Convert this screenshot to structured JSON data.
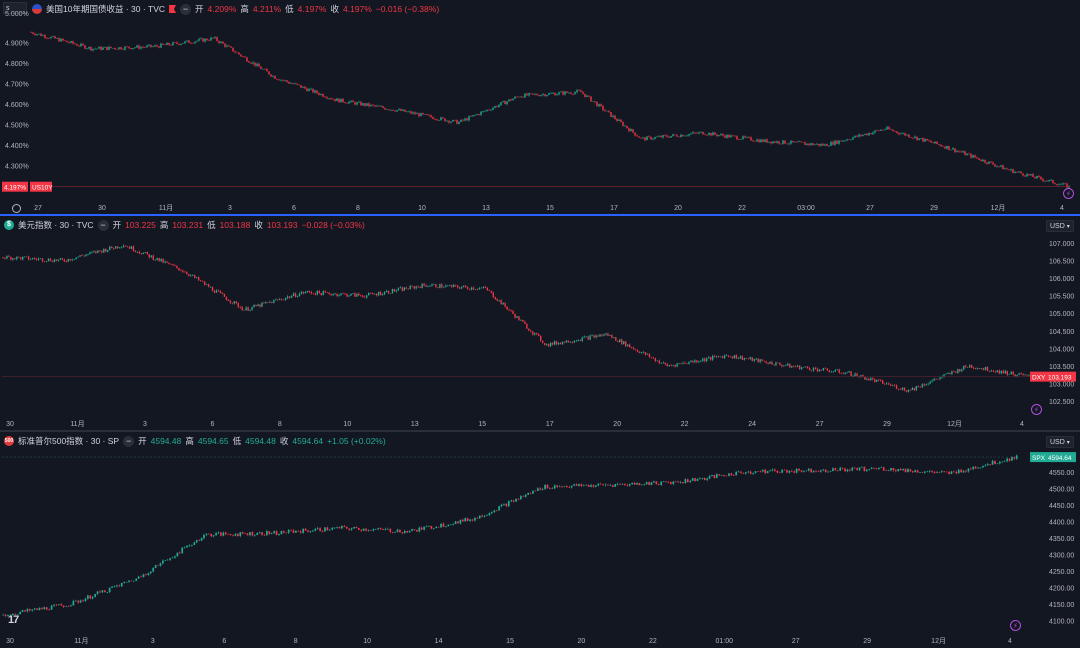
{
  "pane1": {
    "symbol_box": "s",
    "title": "美国10年期国债收益 · 30 · TVC",
    "o_label": "开",
    "o": "4.209%",
    "h_label": "高",
    "h": "4.211%",
    "l_label": "低",
    "l": "4.197%",
    "c_label": "收",
    "c": "4.197%",
    "chg": "−0.016 (−0.38%)",
    "price_tag": "4.197%",
    "sym_tag": "US10Y",
    "y_ticks": [
      "4.900%",
      "4.800%",
      "4.700%",
      "4.600%",
      "4.500%",
      "4.400%",
      "4.300%"
    ],
    "y_top": "5.000%",
    "x_labels": [
      "27",
      "30",
      "11月",
      "3",
      "6",
      "8",
      "10",
      "13",
      "15",
      "17",
      "20",
      "22",
      "03:00",
      "27",
      "29",
      "12月",
      "4"
    ],
    "line_color": "#8a2232",
    "border_color": "#2962ff"
  },
  "pane2": {
    "title": "美元指数 · 30 · TVC",
    "o_label": "开",
    "o": "103.225",
    "h_label": "高",
    "h": "103.231",
    "l_label": "低",
    "l": "103.188",
    "c_label": "收",
    "c": "103.193",
    "chg": "−0.028 (−0.03%)",
    "currency": "USD",
    "price_tag": "103.193",
    "sym_tag": "DXY",
    "y_ticks": [
      "107.000",
      "106.500",
      "106.000",
      "105.500",
      "105.000",
      "104.500",
      "104.000",
      "103.500",
      "103.000",
      "102.500"
    ],
    "x_labels": [
      "30",
      "11月",
      "3",
      "6",
      "8",
      "10",
      "13",
      "15",
      "17",
      "20",
      "22",
      "24",
      "27",
      "29",
      "12月",
      "4"
    ]
  },
  "pane3": {
    "title": "标准普尔500指数 · 30 · SP",
    "o_label": "开",
    "o": "4594.48",
    "h_label": "高",
    "h": "4594.65",
    "l_label": "低",
    "l": "4594.48",
    "c_label": "收",
    "c": "4594.64",
    "chg": "+1.05 (+0.02%)",
    "currency": "USD",
    "price_tag": "4594.64",
    "sym_tag": "SPX",
    "y_ticks": [
      "4550.00",
      "4500.00",
      "4450.00",
      "4400.00",
      "4350.00",
      "4300.00",
      "4250.00",
      "4200.00",
      "4150.00",
      "4100.00"
    ],
    "x_labels": [
      "30",
      "11月",
      "3",
      "6",
      "8",
      "10",
      "14",
      "15",
      "20",
      "22",
      "01:00",
      "27",
      "29",
      "12月",
      "4"
    ]
  },
  "colors": {
    "up": "#22ab94",
    "down": "#f23645",
    "bg": "#131722",
    "grid": "#1e222d"
  },
  "chart_data": [
    {
      "type": "candlestick",
      "title": "美国10年期国债收益 · 30 · TVC",
      "x_ticks": [
        "27",
        "30",
        "11月",
        "3",
        "6",
        "8",
        "10",
        "13",
        "15",
        "17",
        "20",
        "22",
        "03:00",
        "27",
        "29",
        "12月",
        "4"
      ],
      "anchors_x": [
        "27",
        "30",
        "11月",
        "3",
        "6",
        "8",
        "10",
        "13",
        "15",
        "17",
        "20",
        "22",
        "03:00",
        "27",
        "29",
        "12月",
        "4"
      ],
      "close_path": [
        4.95,
        4.87,
        4.88,
        4.92,
        4.73,
        4.62,
        4.57,
        4.51,
        4.64,
        4.66,
        4.43,
        4.46,
        4.42,
        4.4,
        4.48,
        4.39,
        4.28,
        4.197
      ],
      "ylim": [
        4.22,
        5.0
      ],
      "last": 4.197
    },
    {
      "type": "candlestick",
      "title": "美元指数 · 30 · TVC",
      "x_ticks": [
        "30",
        "11月",
        "3",
        "6",
        "8",
        "10",
        "13",
        "15",
        "17",
        "20",
        "22",
        "24",
        "27",
        "29",
        "12月",
        "4"
      ],
      "close_path": [
        106.6,
        106.5,
        106.95,
        106.2,
        105.1,
        105.6,
        105.5,
        105.8,
        105.7,
        104.1,
        104.4,
        103.5,
        103.8,
        103.5,
        103.3,
        102.8,
        103.5,
        103.193
      ],
      "ylim": [
        102.3,
        107.2
      ],
      "last": 103.193
    },
    {
      "type": "candlestick",
      "title": "标准普尔500指数 · 30 · SP",
      "x_ticks": [
        "30",
        "11月",
        "3",
        "6",
        "8",
        "10",
        "14",
        "15",
        "20",
        "22",
        "01:00",
        "27",
        "29",
        "12月",
        "4"
      ],
      "close_path": [
        4117,
        4150,
        4230,
        4360,
        4365,
        4380,
        4370,
        4410,
        4505,
        4510,
        4520,
        4550,
        4555,
        4560,
        4545,
        4594.64
      ],
      "ylim": [
        4090,
        4610
      ],
      "last": 4594.64
    }
  ]
}
